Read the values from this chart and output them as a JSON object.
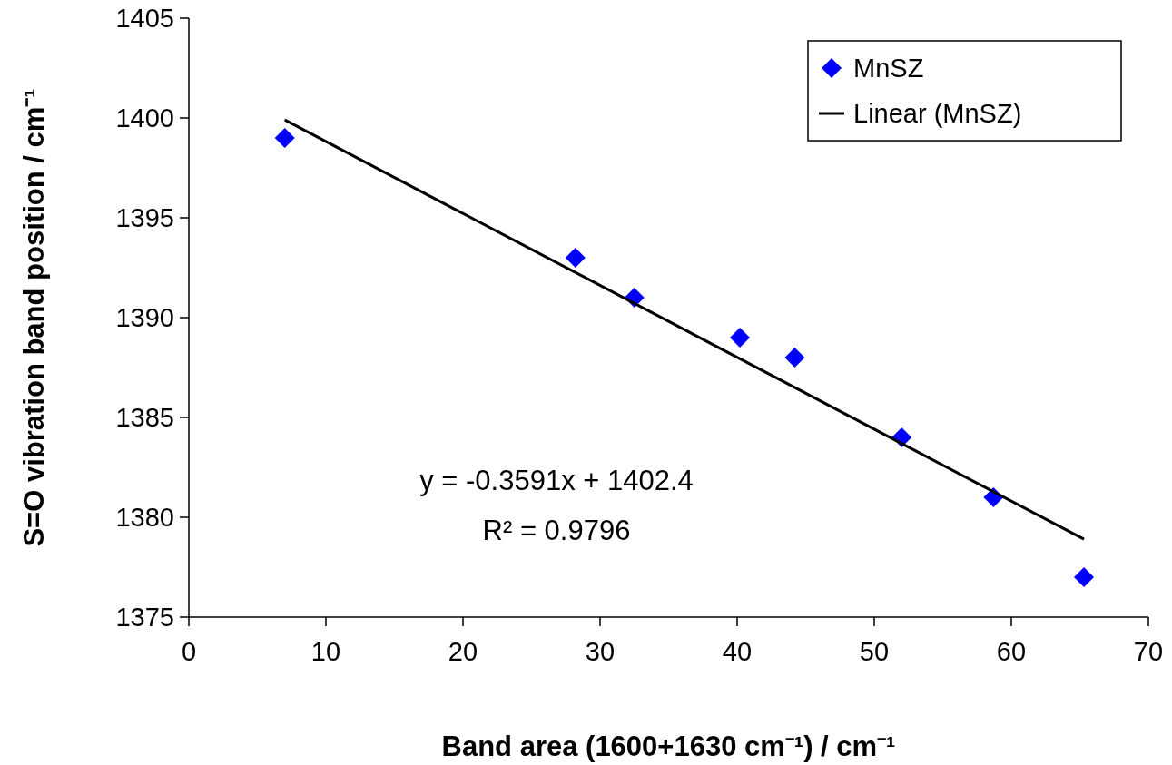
{
  "chart_data": {
    "type": "scatter",
    "xlabel": "Band area (1600+1630 cm⁻¹) / cm⁻¹",
    "ylabel": "S=O vibration band position / cm⁻¹",
    "xlim": [
      0,
      70
    ],
    "xticks": [
      0,
      10,
      20,
      30,
      40,
      50,
      60,
      70
    ],
    "ylim": [
      1375,
      1405
    ],
    "yticks": [
      1375,
      1380,
      1385,
      1390,
      1395,
      1400,
      1405
    ],
    "grid": false,
    "legend": "top right",
    "series": [
      {
        "name": "MnSZ",
        "marker": "diamond",
        "color": "#0000ff",
        "x": [
          7,
          28.2,
          32.5,
          40.2,
          44.2,
          52,
          58.7,
          65.3
        ],
        "values": [
          1399,
          1393,
          1391,
          1389,
          1388,
          1384,
          1381,
          1377
        ]
      },
      {
        "name": "Linear (MnSZ)",
        "type": "line",
        "color": "#000000",
        "x": [
          7,
          65.3
        ],
        "values": [
          1399.9,
          1378.9
        ]
      }
    ],
    "annotations": [
      "y = -0.3591x + 1402.4",
      "R² = 0.9796"
    ]
  }
}
